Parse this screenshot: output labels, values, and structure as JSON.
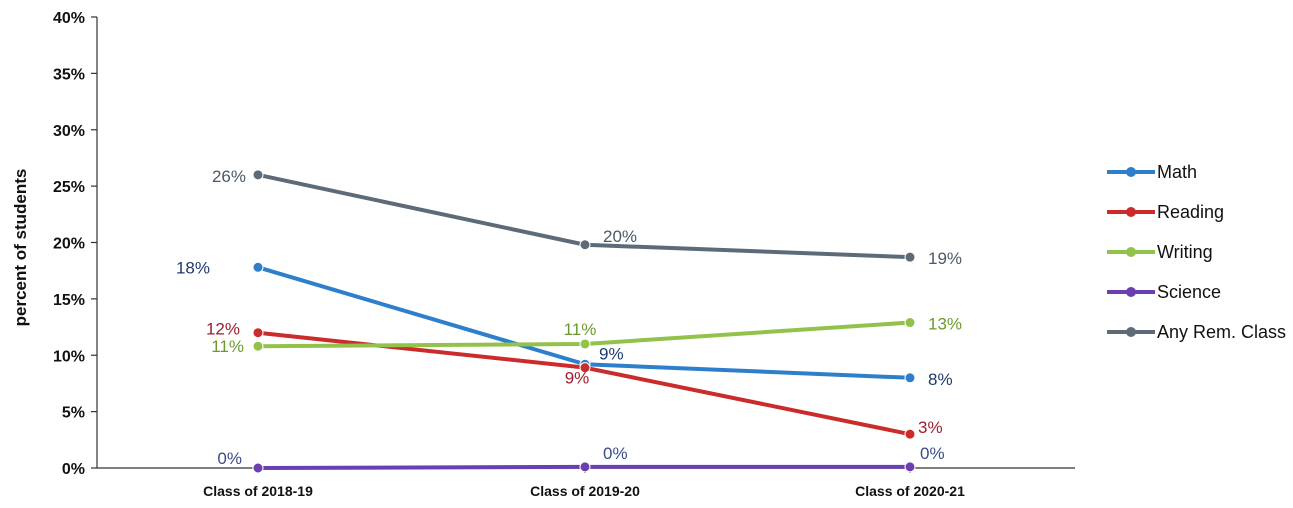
{
  "chart_data": {
    "type": "line",
    "title": "",
    "xlabel": "",
    "ylabel": "percent of students",
    "categories": [
      "Class of 2018-19",
      "Class of 2019-20",
      "Class of 2020-21"
    ],
    "ylim": [
      0,
      40
    ],
    "yticks": [
      0,
      5,
      10,
      15,
      20,
      25,
      30,
      35,
      40
    ],
    "ytick_labels": [
      "0%",
      "5%",
      "10%",
      "15%",
      "20%",
      "25%",
      "30%",
      "35%",
      "40%"
    ],
    "grid": false,
    "legend_position": "right",
    "series": [
      {
        "name": "Math",
        "color": "#2e7fcb",
        "values": [
          17.8,
          9.2,
          8.0
        ],
        "labels": [
          "18%",
          "9%",
          "8%"
        ],
        "label_color": "#1f3a6e"
      },
      {
        "name": "Reading",
        "color": "#cc2b2b",
        "values": [
          12.0,
          8.9,
          3.0
        ],
        "labels": [
          "12%",
          "9%",
          "3%"
        ],
        "label_color": "#9a1f2e"
      },
      {
        "name": "Writing",
        "color": "#93c24a",
        "values": [
          10.8,
          11.0,
          12.9
        ],
        "labels": [
          "11%",
          "11%",
          "13%"
        ],
        "label_color": "#6c9a2e"
      },
      {
        "name": "Science",
        "color": "#6a3fb0",
        "values": [
          0.0,
          0.1,
          0.1
        ],
        "labels": [
          "0%",
          "0%",
          "0%"
        ],
        "label_color": "#3a4a8a"
      },
      {
        "name": "Any Rem. Class",
        "color": "#5d6a78",
        "values": [
          26.0,
          19.8,
          18.7
        ],
        "labels": [
          "26%",
          "20%",
          "19%"
        ],
        "label_color": "#4c5866"
      }
    ]
  }
}
